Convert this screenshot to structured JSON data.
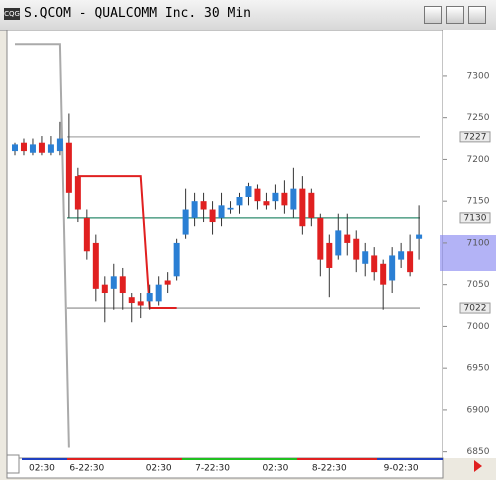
{
  "title": "S.QCOM - QUALCOMM Inc. 30 Min",
  "chart_data": {
    "type": "candlestick",
    "categories": [
      null,
      null,
      null,
      "02:30",
      null,
      null,
      null,
      null,
      "6-22:30",
      null,
      null,
      null,
      null,
      null,
      null,
      null,
      "02:30",
      null,
      null,
      null,
      null,
      null,
      "7-22:30",
      null,
      null,
      null,
      null,
      null,
      null,
      "02:30",
      null,
      null,
      null,
      null,
      null,
      "8-22:30",
      null,
      null,
      null,
      null,
      null,
      null,
      null,
      "9-02:30",
      null,
      null
    ],
    "open": [
      7210,
      7220,
      7208,
      7220,
      7208,
      7210,
      7220,
      7180,
      7130,
      7100,
      7050,
      7045,
      7060,
      7035,
      7030,
      7030,
      7030,
      7055,
      7060,
      7110,
      7130,
      7150,
      7140,
      7130,
      7140,
      7145,
      7155,
      7165,
      7150,
      7150,
      7160,
      7140,
      7165,
      7160,
      7130,
      7100,
      7085,
      7110,
      7105,
      7075,
      7085,
      7075,
      7055,
      7080,
      7090,
      7105
    ],
    "high": [
      7220,
      7225,
      7225,
      7228,
      7228,
      7245,
      7255,
      7190,
      7140,
      7110,
      7060,
      7075,
      7070,
      7040,
      7040,
      7050,
      7060,
      7065,
      7105,
      7165,
      7160,
      7160,
      7150,
      7160,
      7150,
      7160,
      7172,
      7170,
      7160,
      7170,
      7175,
      7190,
      7180,
      7165,
      7135,
      7110,
      7135,
      7135,
      7115,
      7100,
      7095,
      7080,
      7095,
      7100,
      7110,
      7145
    ],
    "low": [
      7205,
      7205,
      7205,
      7205,
      7205,
      7205,
      7130,
      7125,
      7080,
      7030,
      7005,
      7020,
      7020,
      7005,
      7010,
      7020,
      7025,
      7040,
      7055,
      7105,
      7120,
      7125,
      7110,
      7120,
      7135,
      7135,
      7145,
      7140,
      7140,
      7140,
      7135,
      7130,
      7110,
      7120,
      7060,
      7035,
      7080,
      7085,
      7065,
      7060,
      7055,
      7020,
      7040,
      7070,
      7060,
      7080
    ],
    "close": [
      7218,
      7210,
      7218,
      7208,
      7218,
      7225,
      7160,
      7140,
      7090,
      7045,
      7040,
      7060,
      7040,
      7028,
      7025,
      7040,
      7050,
      7050,
      7100,
      7140,
      7150,
      7140,
      7125,
      7145,
      7142,
      7155,
      7168,
      7150,
      7145,
      7160,
      7145,
      7165,
      7120,
      7130,
      7080,
      7070,
      7115,
      7100,
      7080,
      7090,
      7065,
      7050,
      7085,
      7090,
      7065,
      7110
    ],
    "up_color": "#2a7fd4",
    "down_color": "#e02020",
    "lines": [
      {
        "color": "#aaaaaa",
        "values": [
          7338,
          7338,
          7338,
          7338,
          7338,
          7338,
          6855,
          null,
          null,
          null,
          null,
          null,
          null,
          null,
          null,
          null,
          null,
          null,
          null,
          null,
          null,
          null,
          null,
          null,
          null,
          null,
          null,
          null,
          null,
          null,
          null,
          null,
          null,
          null,
          null,
          null,
          null,
          null,
          null,
          null,
          null,
          null,
          null,
          null,
          null,
          null
        ]
      },
      {
        "color": "#e02020",
        "values": [
          null,
          null,
          null,
          null,
          null,
          null,
          null,
          7180,
          7180,
          7180,
          7180,
          7180,
          7180,
          7180,
          7180,
          7022,
          7022,
          7022,
          7022,
          null,
          null,
          null,
          null,
          null,
          null,
          null,
          null,
          null,
          null,
          null,
          null,
          null,
          null,
          null,
          null,
          null,
          null,
          null,
          null,
          null,
          null,
          null,
          null,
          null,
          null,
          null
        ]
      }
    ],
    "levels": [
      {
        "value": 7227,
        "color": "#aaaaaa"
      },
      {
        "value": 7130,
        "color": "#2e8b6e"
      },
      {
        "value": 7022,
        "color": "#888888"
      }
    ],
    "ylim": [
      6846,
      7355
    ],
    "yticks": [
      6850,
      6900,
      6950,
      7000,
      7050,
      7100,
      7150,
      7200,
      7250,
      7300
    ]
  }
}
